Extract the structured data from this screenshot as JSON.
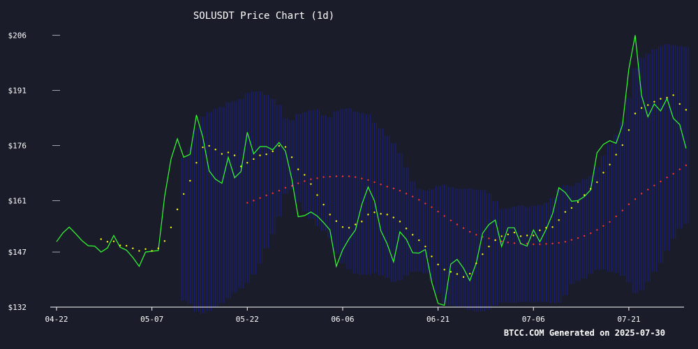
{
  "chart_data": {
    "type": "line",
    "title": "SOLUSDT Price Chart (1d)",
    "footer": "BTCC.COM Generated on 2025-07-30",
    "xlabel": "",
    "ylabel": "",
    "colors": {
      "background": "#1a1d29",
      "price": "#33ff33",
      "ma_short": "#ffff00",
      "ma_long": "#ff3333",
      "band": "#1a1f8a",
      "axis": "#ffffff"
    },
    "ylim": [
      132,
      208
    ],
    "y_ticks": [
      {
        "value": 206,
        "label": "$206"
      },
      {
        "value": 191,
        "label": "$191"
      },
      {
        "value": 176,
        "label": "$176"
      },
      {
        "value": 161,
        "label": "$161"
      },
      {
        "value": 147,
        "label": "$147"
      },
      {
        "value": 132,
        "label": "$132"
      }
    ],
    "x_ticks": [
      {
        "index": 0,
        "label": "04-22"
      },
      {
        "index": 15,
        "label": "05-07"
      },
      {
        "index": 30,
        "label": "05-22"
      },
      {
        "index": 45,
        "label": "06-06"
      },
      {
        "index": 60,
        "label": "06-21"
      },
      {
        "index": 75,
        "label": "07-06"
      },
      {
        "index": 90,
        "label": "07-21"
      }
    ],
    "x_count": 100,
    "series": [
      {
        "key": "price",
        "start_index": 0,
        "values": [
          149.8,
          152.2,
          153.8,
          152.0,
          150.1,
          148.7,
          148.6,
          147.0,
          148.1,
          151.5,
          148.3,
          147.5,
          145.5,
          143.1,
          147.0,
          147.2,
          147.4,
          162.2,
          172.3,
          177.8,
          172.8,
          173.6,
          184.3,
          178.3,
          169.1,
          166.8,
          165.7,
          172.8,
          167.2,
          168.9,
          179.6,
          173.7,
          175.7,
          175.7,
          174.8,
          176.8,
          174.4,
          166.8,
          156.6,
          156.9,
          157.9,
          156.8,
          155.0,
          153.0,
          143.1,
          147.6,
          150.6,
          153.0,
          159.9,
          164.7,
          160.9,
          152.8,
          149.2,
          144.3,
          152.5,
          150.5,
          146.8,
          146.7,
          147.7,
          138.8,
          133.0,
          132.5,
          143.7,
          145.0,
          142.6,
          139.2,
          144.0,
          152.1,
          154.5,
          155.7,
          148.5,
          153.6,
          153.6,
          149.3,
          148.6,
          153.0,
          149.8,
          153.2,
          157.4,
          164.5,
          163.2,
          160.8,
          161.0,
          162.1,
          163.9,
          174.0,
          176.3,
          177.3,
          176.6,
          181.6,
          196.8,
          206.0,
          189.6,
          183.8,
          187.3,
          185.4,
          188.8,
          183.4,
          181.7,
          175.2
        ]
      },
      {
        "key": "ma_short",
        "start_index": 7,
        "values": [
          150.5,
          149.8,
          149.9,
          148.8,
          148.7,
          148.0,
          147.3,
          147.8,
          147.3,
          148.0,
          150.0,
          153.7,
          158.6,
          162.8,
          166.4,
          171.3,
          175.5,
          175.9,
          174.9,
          173.7,
          174.1,
          173.3,
          170.3,
          171.3,
          172.3,
          173.3,
          173.6,
          174.4,
          175.9,
          175.6,
          172.8,
          169.5,
          168.0,
          165.5,
          162.5,
          159.9,
          157.2,
          155.4,
          153.8,
          153.6,
          154.5,
          155.3,
          157.2,
          157.8,
          157.4,
          157.2,
          156.4,
          155.3,
          153.4,
          151.7,
          150.2,
          148.5,
          145.8,
          143.6,
          142.2,
          141.6,
          141.0,
          140.2,
          141.1,
          143.9,
          146.4,
          148.5,
          150.2,
          151.3,
          151.8,
          152.3,
          151.3,
          151.5,
          151.5,
          152.9,
          153.6,
          153.8,
          155.7,
          157.9,
          159.0,
          160.6,
          162.5,
          164.2,
          166.0,
          168.6,
          170.8,
          173.5,
          176.1,
          180.2,
          184.7,
          186.2,
          187.0,
          187.9,
          188.7,
          189.0,
          189.7,
          187.3,
          185.7
        ]
      },
      {
        "key": "ma_long",
        "start_index": 30,
        "values": [
          160.4,
          161.0,
          161.7,
          162.4,
          163.0,
          163.7,
          164.5,
          165.0,
          165.7,
          166.3,
          166.8,
          167.1,
          167.4,
          167.5,
          167.6,
          167.6,
          167.6,
          167.4,
          167.0,
          166.6,
          166.0,
          165.4,
          164.8,
          164.3,
          163.7,
          162.9,
          162.1,
          161.2,
          160.2,
          159.2,
          158.0,
          156.8,
          155.6,
          154.5,
          153.5,
          152.5,
          151.7,
          151.1,
          150.7,
          150.3,
          149.9,
          149.6,
          149.4,
          149.3,
          149.3,
          149.1,
          149.1,
          149.2,
          149.3,
          149.5,
          149.8,
          150.3,
          150.8,
          151.4,
          152.1,
          153.0,
          154.1,
          155.2,
          156.7,
          158.3,
          160.0,
          161.4,
          162.9,
          164.0,
          165.1,
          166.2,
          167.3,
          168.3,
          169.5,
          170.6
        ]
      }
    ]
  }
}
